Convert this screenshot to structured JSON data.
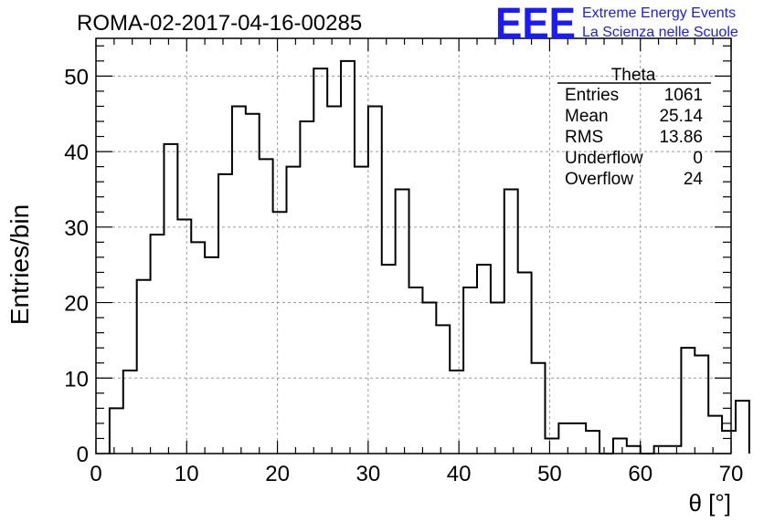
{
  "chart_data": {
    "type": "bar",
    "title": "ROMA-02-2017-04-16-00285",
    "xlabel": "θ [°]",
    "ylabel": "Entries/bin",
    "xlim": [
      0,
      70
    ],
    "ylim": [
      0,
      55
    ],
    "grid": true,
    "bin_width": 1.5,
    "bin_start": 1.5,
    "values": [
      6,
      11,
      23,
      29,
      41,
      31,
      28,
      26,
      37,
      46,
      45,
      39,
      32,
      38,
      44,
      51,
      46,
      52,
      38,
      46,
      25,
      35,
      22,
      20,
      17,
      11,
      22,
      25,
      20,
      35,
      24,
      12,
      2,
      4,
      4,
      3,
      0,
      2,
      1,
      0,
      1,
      1,
      14,
      13,
      5,
      3,
      7
    ],
    "x_ticks": [
      0,
      10,
      20,
      30,
      40,
      50,
      60,
      70
    ],
    "y_ticks": [
      0,
      10,
      20,
      30,
      40,
      50
    ],
    "stats": {
      "title": "Theta",
      "rows": [
        {
          "label": "Entries",
          "value": "1061"
        },
        {
          "label": "Mean",
          "value": "25.14"
        },
        {
          "label": "RMS",
          "value": "13.86"
        },
        {
          "label": "Underflow",
          "value": "0"
        },
        {
          "label": "Overflow",
          "value": "24"
        }
      ]
    },
    "logo": {
      "mark": "EEE",
      "line1": "Extreme Energy Events",
      "line2": "La Scienza nelle Scuole",
      "color": "#1a1aff"
    },
    "line_color": "#000000",
    "grid_color": "#9a9a9a"
  }
}
